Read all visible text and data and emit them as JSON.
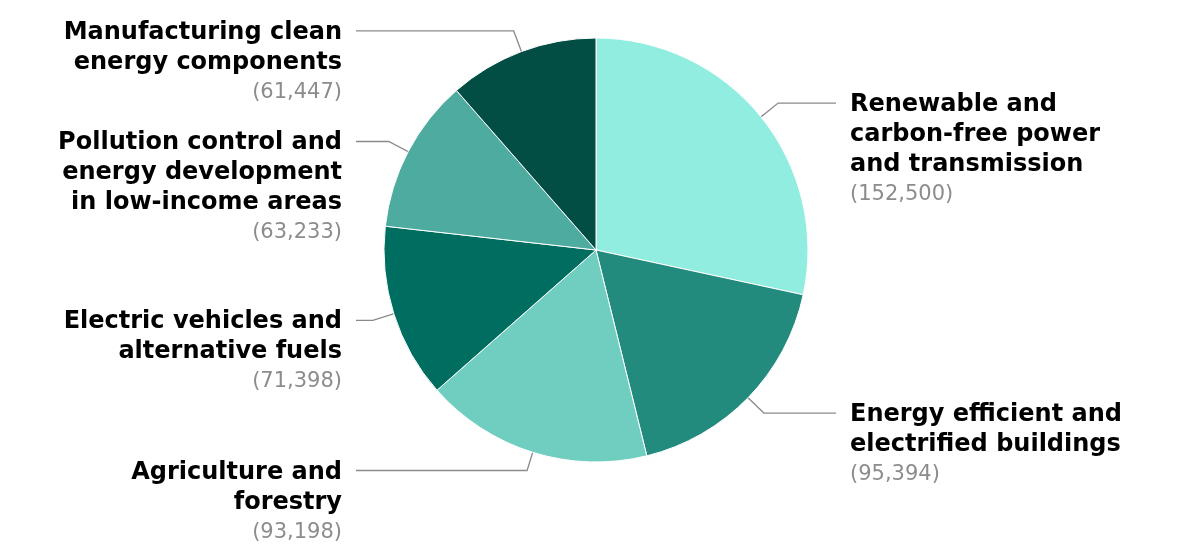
{
  "chart_data": {
    "type": "pie",
    "categories": [
      "Renewable and carbon-free power and transmission",
      "Energy efficient and electrified buildings",
      "Agriculture and forestry",
      "Electric vehicles and alternative fuels",
      "Pollution control and energy development in low-income areas",
      "Manufacturing clean energy components"
    ],
    "values": [
      152500,
      95394,
      93198,
      71398,
      63233,
      61447
    ],
    "colors": [
      "#90ede0",
      "#238b7e",
      "#6fcebf",
      "#006d61",
      "#4dab9f",
      "#024d44"
    ],
    "value_labels": [
      "(152,500)",
      "(95,394)",
      "(93,198)",
      "(71,398)",
      "(63,233)",
      "(61,447)"
    ]
  }
}
